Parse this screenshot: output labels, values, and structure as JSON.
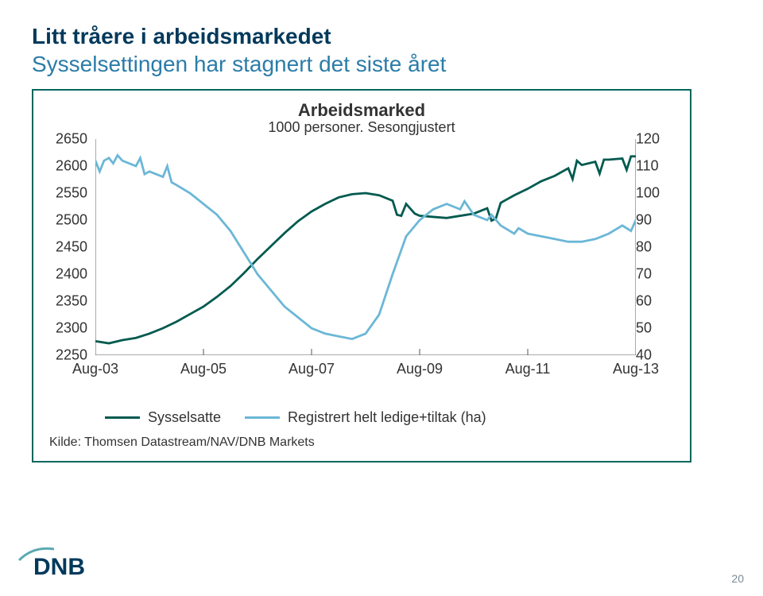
{
  "page_number": "20",
  "title": {
    "line1": "Litt tråere i arbeidsmarkedet",
    "line2": "Sysselsettingen har stagnert det siste året",
    "line1_color": "#00395b",
    "line2_color": "#2b7ca8",
    "fontsize": 28
  },
  "chart": {
    "frame_border_color": "#00675c",
    "background_color": "#ffffff",
    "title": "Arbeidsmarked",
    "subtitle": "1000 personer. Sesongjustert",
    "title_fontsize": 22,
    "subtitle_fontsize": 18,
    "x": {
      "min": 2003.67,
      "max": 2013.67,
      "ticks": [
        2003.67,
        2005.67,
        2007.67,
        2009.67,
        2011.67,
        2013.67
      ],
      "tick_labels": [
        "Aug-03",
        "Aug-05",
        "Aug-07",
        "Aug-09",
        "Aug-11",
        "Aug-13"
      ],
      "label_fontsize": 18
    },
    "y_left": {
      "min": 2250,
      "max": 2650,
      "step": 50,
      "ticks": [
        2250,
        2300,
        2350,
        2400,
        2450,
        2500,
        2550,
        2600,
        2650
      ],
      "label_fontsize": 18
    },
    "y_right": {
      "min": 40,
      "max": 120,
      "step": 10,
      "ticks": [
        40,
        50,
        60,
        70,
        80,
        90,
        100,
        110,
        120
      ],
      "label_fontsize": 18
    },
    "series": [
      {
        "name": "Sysselsatte",
        "axis": "left",
        "color": "#005a4f",
        "line_width": 2.8,
        "points": [
          [
            2003.67,
            2276
          ],
          [
            2003.92,
            2272
          ],
          [
            2004.17,
            2278
          ],
          [
            2004.42,
            2282
          ],
          [
            2004.67,
            2290
          ],
          [
            2004.92,
            2300
          ],
          [
            2005.17,
            2312
          ],
          [
            2005.42,
            2326
          ],
          [
            2005.67,
            2340
          ],
          [
            2005.92,
            2358
          ],
          [
            2006.17,
            2378
          ],
          [
            2006.42,
            2402
          ],
          [
            2006.67,
            2428
          ],
          [
            2006.92,
            2452
          ],
          [
            2007.17,
            2476
          ],
          [
            2007.42,
            2498
          ],
          [
            2007.67,
            2516
          ],
          [
            2007.92,
            2530
          ],
          [
            2008.17,
            2542
          ],
          [
            2008.42,
            2548
          ],
          [
            2008.67,
            2550
          ],
          [
            2008.92,
            2546
          ],
          [
            2009.17,
            2536
          ],
          [
            2009.25,
            2510
          ],
          [
            2009.33,
            2508
          ],
          [
            2009.42,
            2530
          ],
          [
            2009.58,
            2512
          ],
          [
            2009.67,
            2508
          ],
          [
            2009.92,
            2506
          ],
          [
            2010.17,
            2504
          ],
          [
            2010.42,
            2508
          ],
          [
            2010.67,
            2512
          ],
          [
            2010.92,
            2522
          ],
          [
            2011.0,
            2499
          ],
          [
            2011.08,
            2503
          ],
          [
            2011.17,
            2532
          ],
          [
            2011.42,
            2546
          ],
          [
            2011.67,
            2558
          ],
          [
            2011.92,
            2572
          ],
          [
            2012.17,
            2582
          ],
          [
            2012.42,
            2596
          ],
          [
            2012.5,
            2576
          ],
          [
            2012.58,
            2610
          ],
          [
            2012.67,
            2602
          ],
          [
            2012.92,
            2608
          ],
          [
            2013.0,
            2586
          ],
          [
            2013.08,
            2612
          ],
          [
            2013.17,
            2612
          ],
          [
            2013.42,
            2614
          ],
          [
            2013.5,
            2593
          ],
          [
            2013.58,
            2618
          ],
          [
            2013.67,
            2618
          ]
        ]
      },
      {
        "name": "Registrert helt ledige+tiltak (ha)",
        "axis": "right",
        "color": "#6bb7d6",
        "line_width": 2.8,
        "points": [
          [
            2003.67,
            112
          ],
          [
            2003.75,
            108
          ],
          [
            2003.83,
            112
          ],
          [
            2003.92,
            113
          ],
          [
            2004.0,
            111
          ],
          [
            2004.08,
            114
          ],
          [
            2004.17,
            112
          ],
          [
            2004.42,
            110
          ],
          [
            2004.5,
            113
          ],
          [
            2004.58,
            107
          ],
          [
            2004.67,
            108
          ],
          [
            2004.92,
            106
          ],
          [
            2005.0,
            110
          ],
          [
            2005.08,
            104
          ],
          [
            2005.17,
            103
          ],
          [
            2005.42,
            100
          ],
          [
            2005.67,
            96
          ],
          [
            2005.92,
            92
          ],
          [
            2006.17,
            86
          ],
          [
            2006.42,
            78
          ],
          [
            2006.67,
            70
          ],
          [
            2006.92,
            64
          ],
          [
            2007.17,
            58
          ],
          [
            2007.42,
            54
          ],
          [
            2007.67,
            50
          ],
          [
            2007.92,
            48
          ],
          [
            2008.17,
            47
          ],
          [
            2008.42,
            46
          ],
          [
            2008.67,
            48
          ],
          [
            2008.92,
            55
          ],
          [
            2009.17,
            70
          ],
          [
            2009.42,
            84
          ],
          [
            2009.67,
            90
          ],
          [
            2009.92,
            94
          ],
          [
            2010.17,
            96
          ],
          [
            2010.42,
            94
          ],
          [
            2010.5,
            97
          ],
          [
            2010.67,
            92
          ],
          [
            2010.92,
            90
          ],
          [
            2011.0,
            92
          ],
          [
            2011.17,
            88
          ],
          [
            2011.42,
            85
          ],
          [
            2011.5,
            87
          ],
          [
            2011.67,
            85
          ],
          [
            2011.92,
            84
          ],
          [
            2012.17,
            83
          ],
          [
            2012.42,
            82
          ],
          [
            2012.67,
            82
          ],
          [
            2012.92,
            83
          ],
          [
            2013.17,
            85
          ],
          [
            2013.42,
            88
          ],
          [
            2013.58,
            86
          ],
          [
            2013.67,
            90
          ]
        ]
      }
    ],
    "legend": {
      "items": [
        {
          "label": "Sysselsatte",
          "color": "#005a4f"
        },
        {
          "label": "Registrert helt ledige+tiltak (ha)",
          "color": "#6bb7d6"
        }
      ],
      "fontsize": 18
    },
    "source": "Kilde: Thomsen Datastream/NAV/DNB Markets",
    "source_fontsize": 16
  },
  "logo": {
    "text": "DNB",
    "color": "#5aa9b0"
  }
}
